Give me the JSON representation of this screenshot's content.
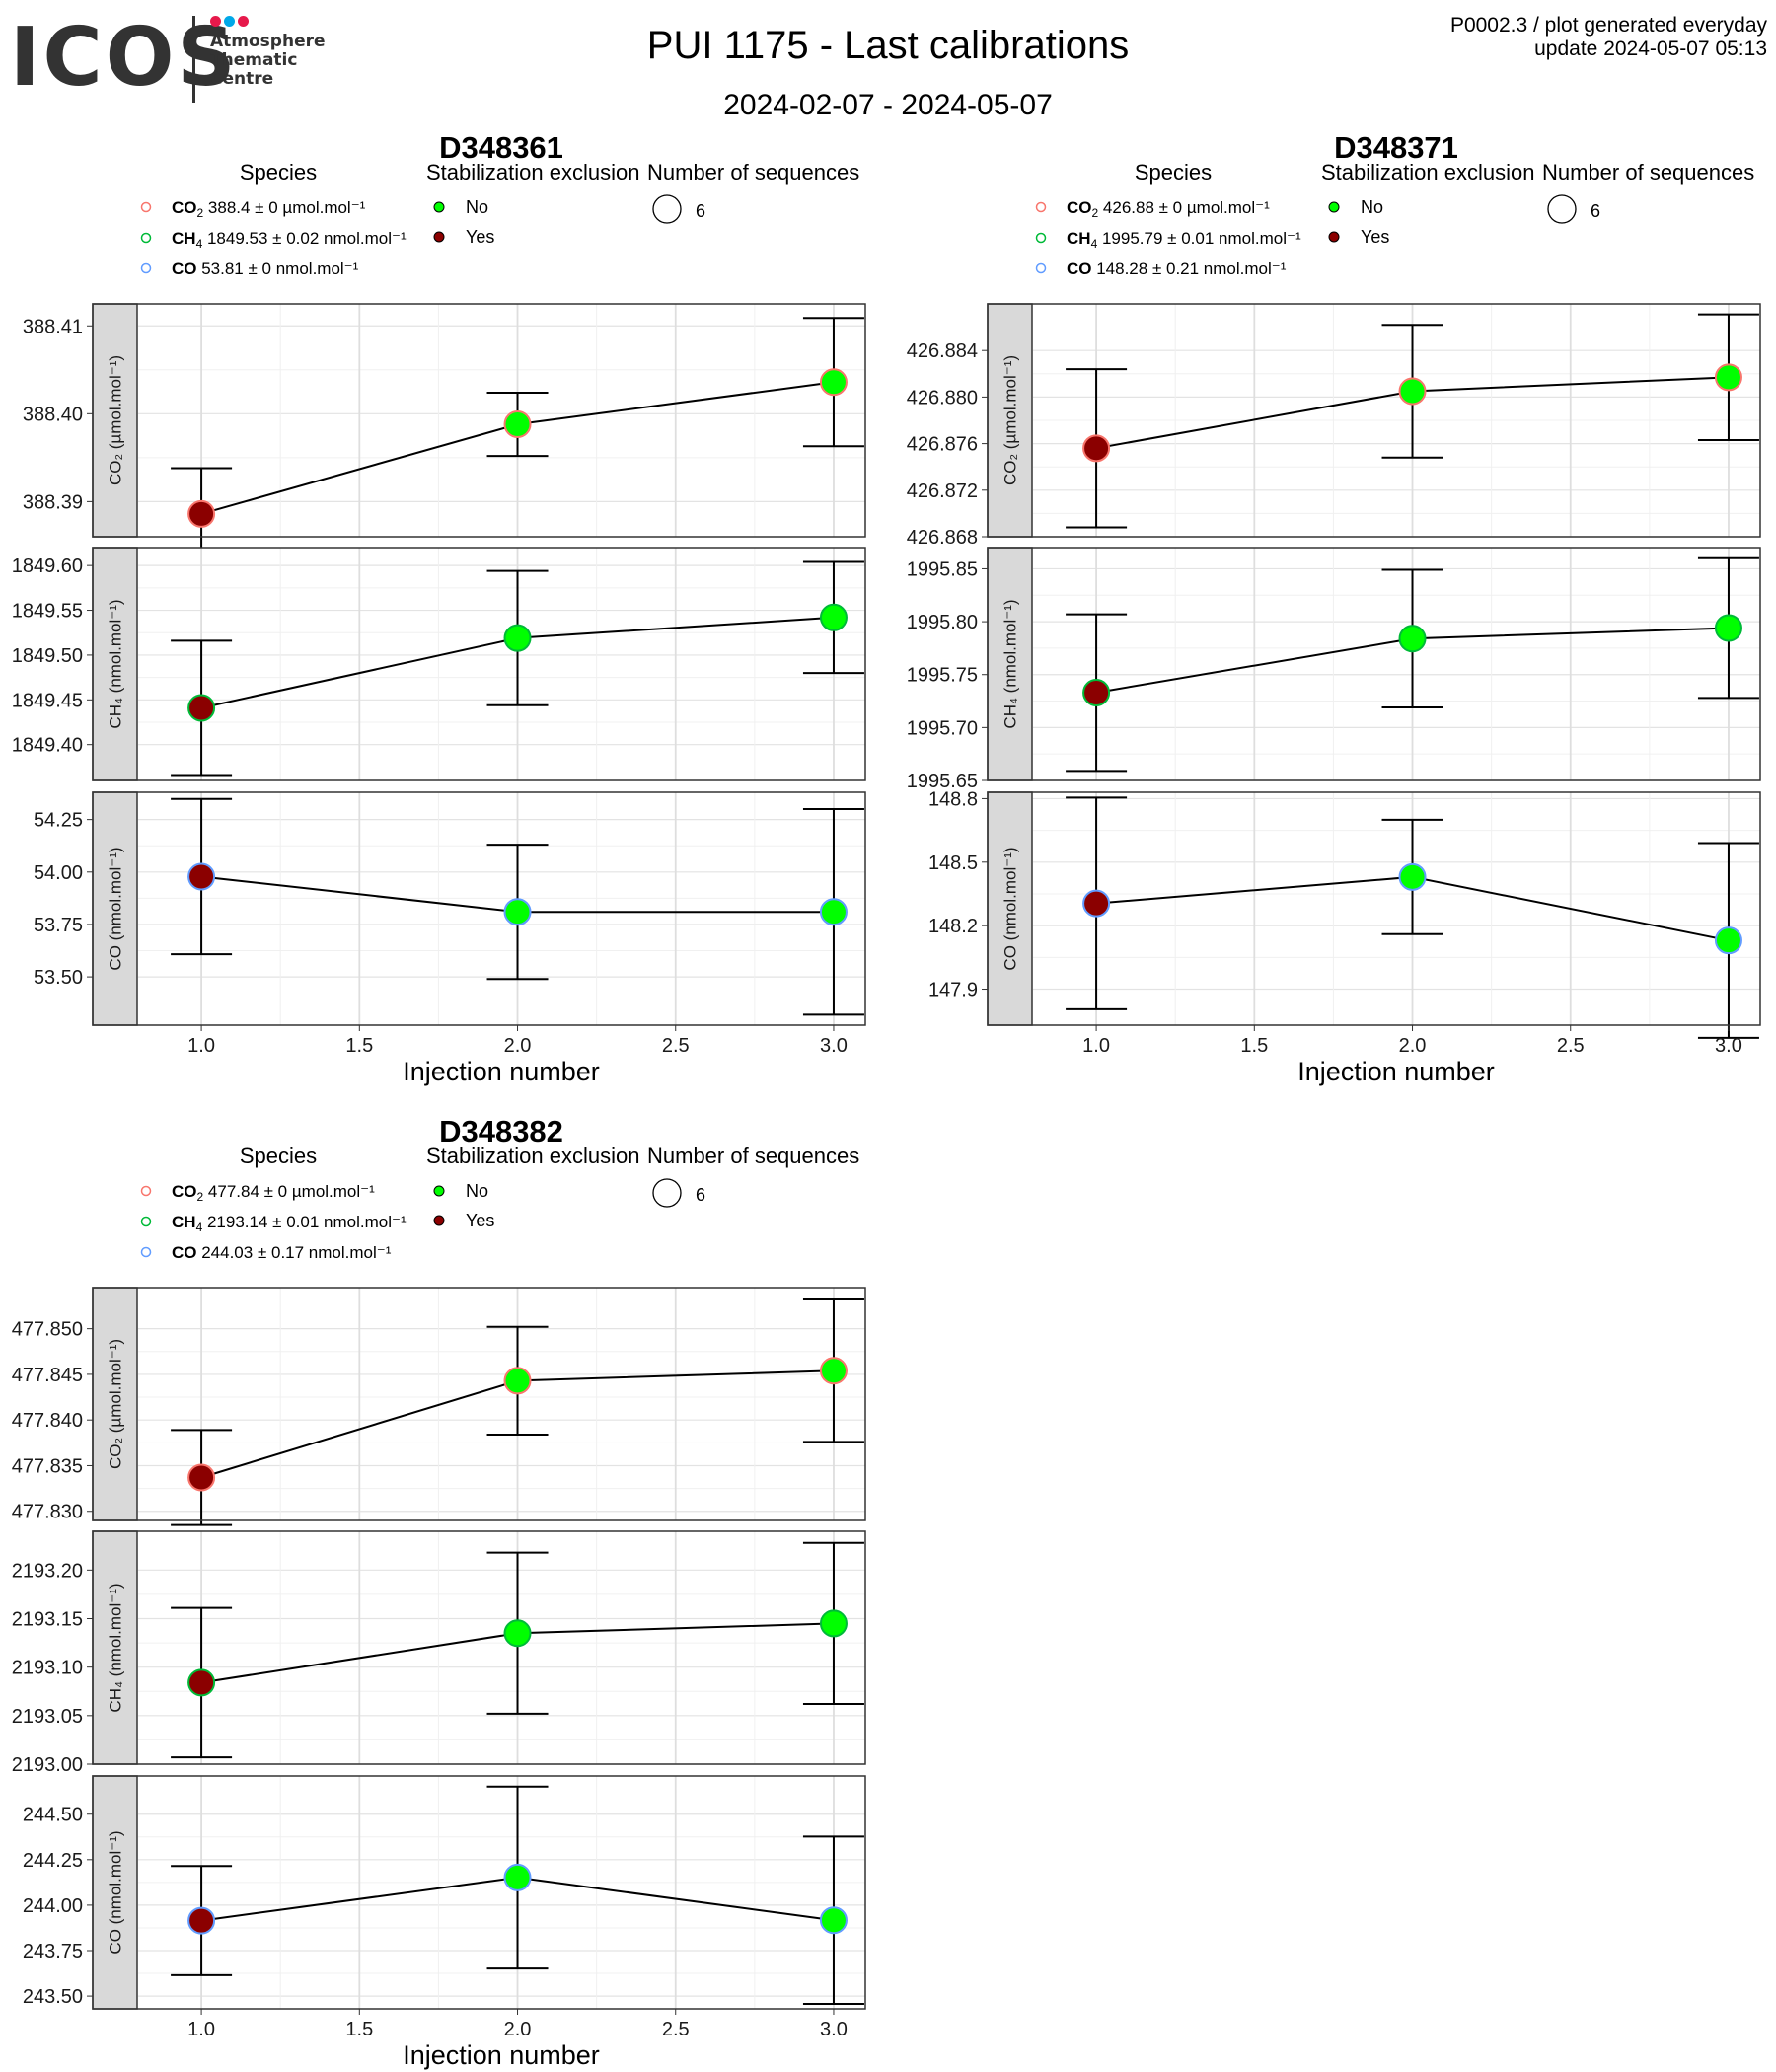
{
  "header": {
    "logo_text": "ICOS",
    "logo_lines": [
      "Atmosphere",
      "Thematic",
      "Centre"
    ],
    "logo_dot_colors": [
      "#e6194b",
      "#00a8e8",
      "#e6194b"
    ],
    "title": "PUI 1175 - Last calibrations",
    "date_range": "2024-02-07 - 2024-05-07",
    "plot_info": "P0002.3 / plot generated everyday",
    "update_info": "update  2024-05-07 05:13"
  },
  "colors": {
    "no_exclusion": "#00ff00",
    "yes_exclusion": "#8b0000",
    "co2": "#f8766d",
    "ch4": "#00ba38",
    "co": "#619cff",
    "strip": "#d9d9d9"
  },
  "legend_titles": {
    "species": "Species",
    "exclusion": "Stabilization exclusion",
    "sequences": "Number of sequences"
  },
  "exclusion_levels": [
    "No",
    "Yes"
  ],
  "x_label": "Injection number",
  "chart_data": [
    {
      "type": "scatter",
      "title": "D348361",
      "n_sequences": "6",
      "legend": [
        {
          "species": "CO2",
          "value": "388.4 ± 0 µmol.mol⁻¹"
        },
        {
          "species": "CH4",
          "value": "1849.53 ± 0.02 nmol.mol⁻¹"
        },
        {
          "species": "CO",
          "value": "53.81 ± 0 nmol.mol⁻¹"
        }
      ],
      "x_ticks": [
        "1.0",
        "1.5",
        "2.0",
        "2.5",
        "3.0"
      ],
      "xlim": [
        0.8,
        3.1
      ],
      "panels": [
        {
          "species": "CO2",
          "ylabel": "CO₂ (µmol.mol⁻¹)",
          "ylim": [
            388.386,
            388.4125
          ],
          "y_ticks": [
            388.39,
            388.4,
            388.41
          ],
          "y_tick_labels": [
            "388.39",
            "388.40",
            "388.41"
          ],
          "points": [
            {
              "x": 1,
              "y": 388.3886,
              "err": 0.0052,
              "excl": "Yes"
            },
            {
              "x": 2,
              "y": 388.3988,
              "err": 0.0036,
              "excl": "No"
            },
            {
              "x": 3,
              "y": 388.4036,
              "err": 0.0073,
              "excl": "No"
            }
          ]
        },
        {
          "species": "CH4",
          "ylabel": "CH₄ (nmol.mol⁻¹)",
          "ylim": [
            1849.36,
            1849.62
          ],
          "y_ticks": [
            1849.4,
            1849.45,
            1849.5,
            1849.55,
            1849.6
          ],
          "y_tick_labels": [
            "1849.40",
            "1849.45",
            "1849.50",
            "1849.55",
            "1849.60"
          ],
          "points": [
            {
              "x": 1,
              "y": 1849.441,
              "err": 0.075,
              "excl": "Yes"
            },
            {
              "x": 2,
              "y": 1849.519,
              "err": 0.075,
              "excl": "No"
            },
            {
              "x": 3,
              "y": 1849.542,
              "err": 0.062,
              "excl": "No"
            }
          ]
        },
        {
          "species": "CO",
          "ylabel": "CO (nmol.mol⁻¹)",
          "ylim": [
            53.27,
            54.38
          ],
          "y_ticks": [
            53.5,
            53.75,
            54.0,
            54.25
          ],
          "y_tick_labels": [
            "53.50",
            "53.75",
            "54.00",
            "54.25"
          ],
          "points": [
            {
              "x": 1,
              "y": 53.978,
              "err": 0.37,
              "excl": "Yes"
            },
            {
              "x": 2,
              "y": 53.81,
              "err": 0.32,
              "excl": "No"
            },
            {
              "x": 3,
              "y": 53.81,
              "err": 0.49,
              "excl": "No"
            }
          ]
        }
      ]
    },
    {
      "type": "scatter",
      "title": "D348371",
      "n_sequences": "6",
      "legend": [
        {
          "species": "CO2",
          "value": "426.88 ± 0 µmol.mol⁻¹"
        },
        {
          "species": "CH4",
          "value": "1995.79 ± 0.01 nmol.mol⁻¹"
        },
        {
          "species": "CO",
          "value": "148.28 ± 0.21 nmol.mol⁻¹"
        }
      ],
      "x_ticks": [
        "1.0",
        "1.5",
        "2.0",
        "2.5",
        "3.0"
      ],
      "xlim": [
        0.8,
        3.1
      ],
      "panels": [
        {
          "species": "CO2",
          "ylabel": "CO₂ (µmol.mol⁻¹)",
          "ylim": [
            426.868,
            426.888
          ],
          "y_ticks": [
            426.868,
            426.872,
            426.876,
            426.88,
            426.884
          ],
          "y_tick_labels": [
            "426.868",
            "426.872",
            "426.876",
            "426.880",
            "426.884"
          ],
          "points": [
            {
              "x": 1,
              "y": 426.8756,
              "err": 0.0068,
              "excl": "Yes"
            },
            {
              "x": 2,
              "y": 426.8805,
              "err": 0.0057,
              "excl": "No"
            },
            {
              "x": 3,
              "y": 426.8817,
              "err": 0.0054,
              "excl": "No"
            }
          ]
        },
        {
          "species": "CH4",
          "ylabel": "CH₄ (nmol.mol⁻¹)",
          "ylim": [
            1995.65,
            1995.87
          ],
          "y_ticks": [
            1995.65,
            1995.7,
            1995.75,
            1995.8,
            1995.85
          ],
          "y_tick_labels": [
            "1995.65",
            "1995.70",
            "1995.75",
            "1995.80",
            "1995.85"
          ],
          "points": [
            {
              "x": 1,
              "y": 1995.733,
              "err": 0.074,
              "excl": "Yes"
            },
            {
              "x": 2,
              "y": 1995.784,
              "err": 0.065,
              "excl": "No"
            },
            {
              "x": 3,
              "y": 1995.794,
              "err": 0.066,
              "excl": "No"
            }
          ]
        },
        {
          "species": "CO",
          "ylabel": "CO (nmol.mol⁻¹)",
          "ylim": [
            147.73,
            148.83
          ],
          "y_ticks": [
            147.9,
            148.2,
            148.5,
            148.8
          ],
          "y_tick_labels": [
            "147.9",
            "148.2",
            "148.5",
            "148.8"
          ],
          "points": [
            {
              "x": 1,
              "y": 148.305,
              "err": 0.5,
              "excl": "Yes"
            },
            {
              "x": 2,
              "y": 148.43,
              "err": 0.27,
              "excl": "No"
            },
            {
              "x": 3,
              "y": 148.13,
              "err": 0.46,
              "excl": "No"
            }
          ]
        }
      ]
    },
    {
      "type": "scatter",
      "title": "D348382",
      "n_sequences": "6",
      "legend": [
        {
          "species": "CO2",
          "value": "477.84 ± 0 µmol.mol⁻¹"
        },
        {
          "species": "CH4",
          "value": "2193.14 ± 0.01 nmol.mol⁻¹"
        },
        {
          "species": "CO",
          "value": "244.03 ± 0.17 nmol.mol⁻¹"
        }
      ],
      "x_ticks": [
        "1.0",
        "1.5",
        "2.0",
        "2.5",
        "3.0"
      ],
      "xlim": [
        0.8,
        3.1
      ],
      "panels": [
        {
          "species": "CO2",
          "ylabel": "CO₂ (µmol.mol⁻¹)",
          "ylim": [
            477.829,
            477.8545
          ],
          "y_ticks": [
            477.83,
            477.835,
            477.84,
            477.845,
            477.85
          ],
          "y_tick_labels": [
            "477.830",
            "477.835",
            "477.840",
            "477.845",
            "477.850"
          ],
          "points": [
            {
              "x": 1,
              "y": 477.8337,
              "err": 0.0052,
              "excl": "Yes"
            },
            {
              "x": 2,
              "y": 477.8443,
              "err": 0.0059,
              "excl": "No"
            },
            {
              "x": 3,
              "y": 477.8454,
              "err": 0.0078,
              "excl": "No"
            }
          ]
        },
        {
          "species": "CH4",
          "ylabel": "CH₄ (nmol.mol⁻¹)",
          "ylim": [
            2193.0,
            2193.24
          ],
          "y_ticks": [
            2193.0,
            2193.05,
            2193.1,
            2193.15,
            2193.2
          ],
          "y_tick_labels": [
            "2193.00",
            "2193.05",
            "2193.10",
            "2193.15",
            "2193.20"
          ],
          "points": [
            {
              "x": 1,
              "y": 2193.084,
              "err": 0.077,
              "excl": "Yes"
            },
            {
              "x": 2,
              "y": 2193.135,
              "err": 0.083,
              "excl": "No"
            },
            {
              "x": 3,
              "y": 2193.145,
              "err": 0.083,
              "excl": "No"
            }
          ]
        },
        {
          "species": "CO",
          "ylabel": "CO (nmol.mol⁻¹)",
          "ylim": [
            243.43,
            244.71
          ],
          "y_ticks": [
            243.5,
            243.75,
            244.0,
            244.25,
            244.5
          ],
          "y_tick_labels": [
            "243.50",
            "243.75",
            "244.00",
            "244.25",
            "244.50"
          ],
          "points": [
            {
              "x": 1,
              "y": 243.915,
              "err": 0.3,
              "excl": "Yes"
            },
            {
              "x": 2,
              "y": 244.152,
              "err": 0.5,
              "excl": "No"
            },
            {
              "x": 3,
              "y": 243.917,
              "err": 0.46,
              "excl": "No"
            }
          ]
        }
      ]
    }
  ]
}
